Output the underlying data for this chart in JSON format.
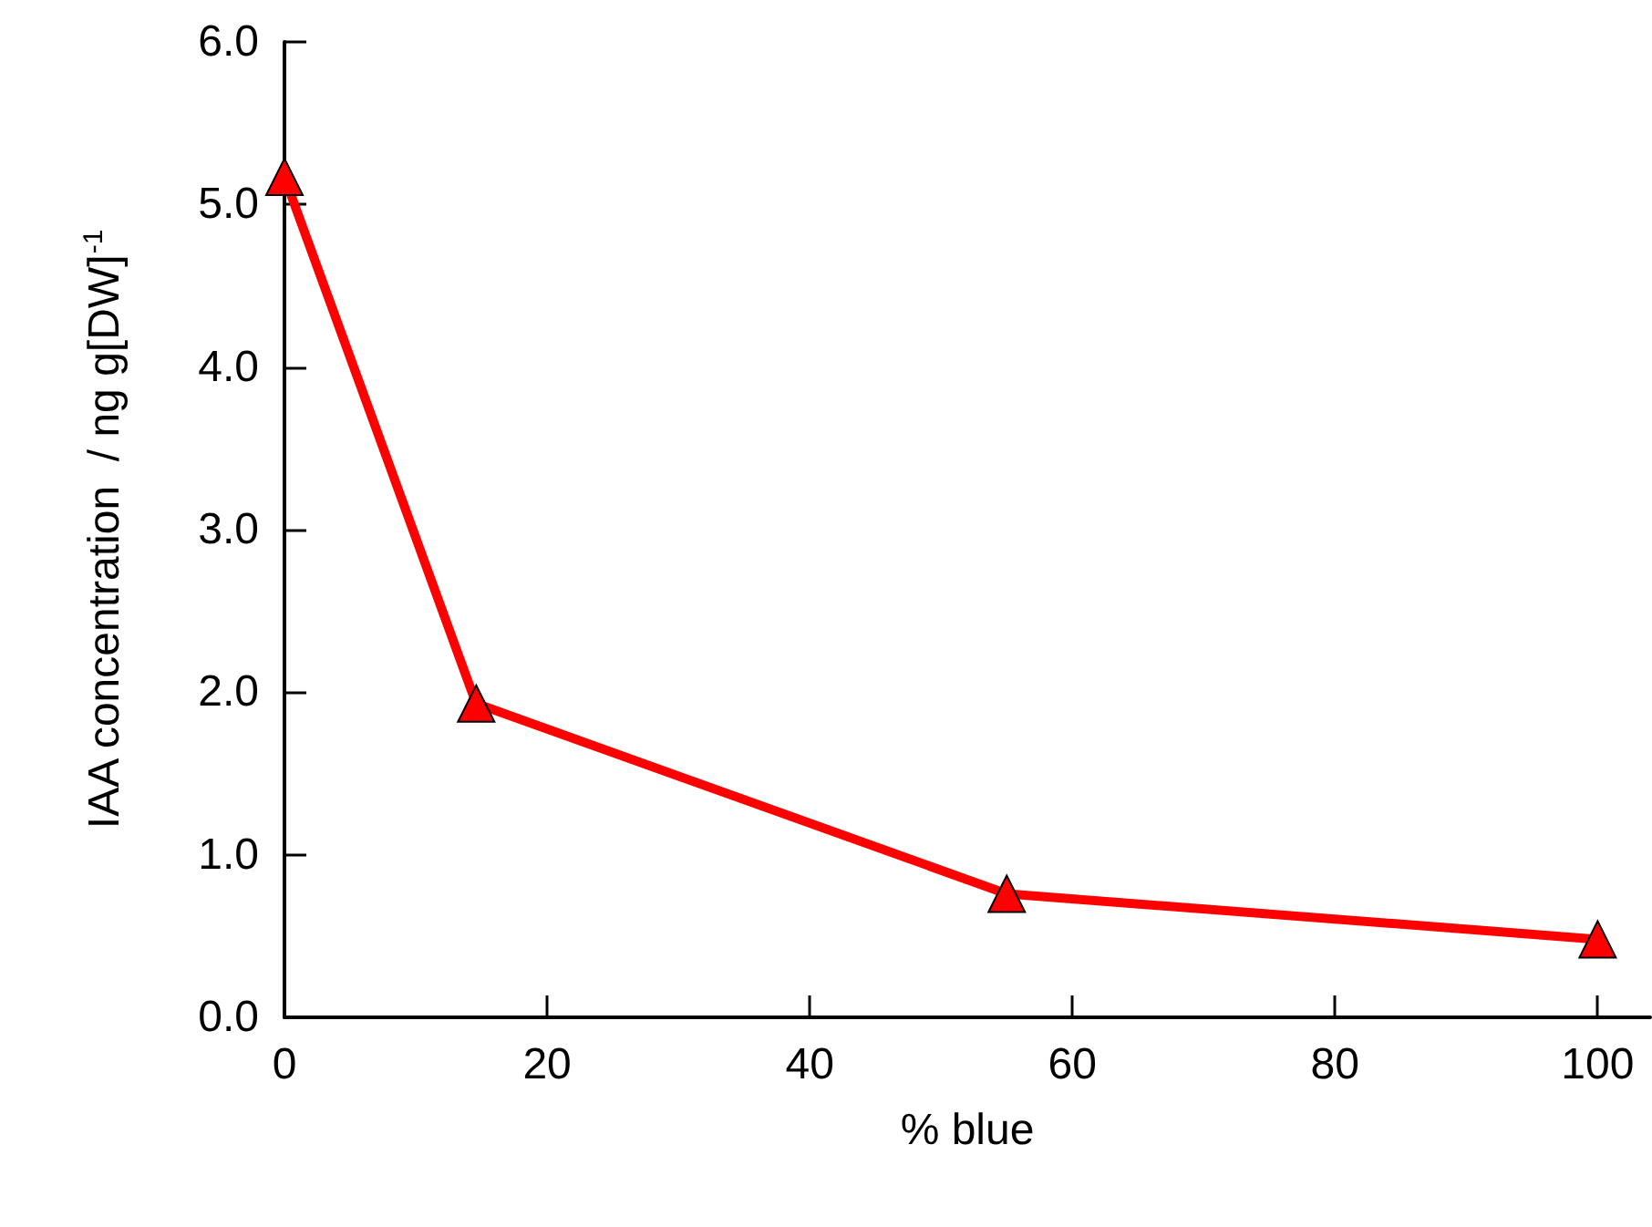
{
  "chart_data": {
    "type": "line",
    "xlabel": "% blue",
    "ylabel": "IAA concentration  / ng g[DW]$^{-1}$",
    "x": [
      0,
      14.6,
      55,
      100
    ],
    "series": [
      {
        "color": "#ff0000",
        "values": [
          5.17,
          1.93,
          0.76,
          0.48
        ]
      }
    ],
    "xlim": [
      0,
      104
    ],
    "xticks": [
      0,
      20,
      40,
      60,
      80,
      100
    ],
    "ylim": [
      0,
      6
    ],
    "yticks": [
      {
        "value": 0,
        "label": "0.0"
      },
      {
        "value": 1,
        "label": "1.0"
      },
      {
        "value": 2,
        "label": "2.0"
      },
      {
        "value": 3,
        "label": "3.0"
      },
      {
        "value": 4,
        "label": "4.0"
      },
      {
        "value": 5,
        "label": "5.0"
      },
      {
        "value": 6,
        "label": "6.0"
      }
    ],
    "marker": "triangle",
    "line_style": "solid"
  }
}
